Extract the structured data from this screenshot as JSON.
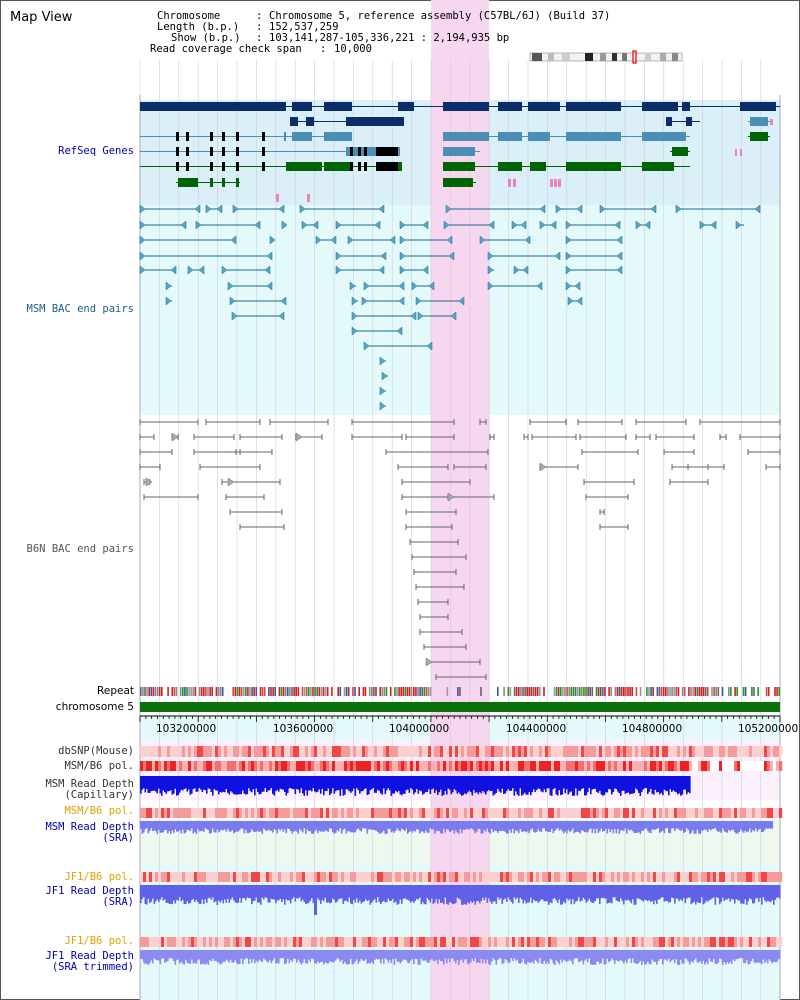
{
  "window": {
    "title": "Map View"
  },
  "info": {
    "chromosome_key": "Chromosome",
    "chromosome_val": "Chromosome 5, reference assembly (C57BL/6J) (Build 37)",
    "length_key": "Length (b.p.)",
    "length_val": "152,537,259",
    "show_key": "Show (b.p.)",
    "show_val": "103,141,287-105,336,221 : 2,194,935 bp",
    "span_key": "Read coverage check span",
    "span_val": "10,000"
  },
  "tracks": {
    "refseq": "RefSeq Genes",
    "msm_bac": "MSM BAC end pairs",
    "b6n_bac": "B6N BAC end pairs",
    "repeat": "Repeat",
    "chromosome": "chromosome 5",
    "dbsnp": "dbSNP(Mouse)",
    "msm_b6_pol_1": "MSM/B6 pol.",
    "msm_depth_cap": "MSM Read Depth\n(Capillary)",
    "msm_b6_pol_2": "MSM/B6 pol.",
    "msm_depth_sra": "MSM Read Depth\n(SRA)",
    "jf1_b6_pol_1": "JF1/B6 pol.",
    "jf1_depth_sra": "JF1 Read Depth\n(SRA)",
    "jf1_b6_pol_2": "JF1/B6 pol.",
    "jf1_depth_trim": "JF1 Read Depth\n(SRA trimmed)"
  },
  "axis": {
    "ticks": [
      "103200000",
      "103600000",
      "104000000",
      "104400000",
      "104800000",
      "105200000"
    ]
  },
  "colors": {
    "refseq_dark": "#0b2d6b",
    "refseq_mid": "#4b8fb5",
    "refseq_green": "#006400",
    "msm_line": "#1a6a8a",
    "b6n_line": "#555555",
    "highlight": "#f7d6ef",
    "label_blue": "#0000aa",
    "label_orange": "#e0a000",
    "label_gray": "#333333",
    "depth_blue": "#1010e0",
    "depth_light": "#7b7bf0"
  }
}
